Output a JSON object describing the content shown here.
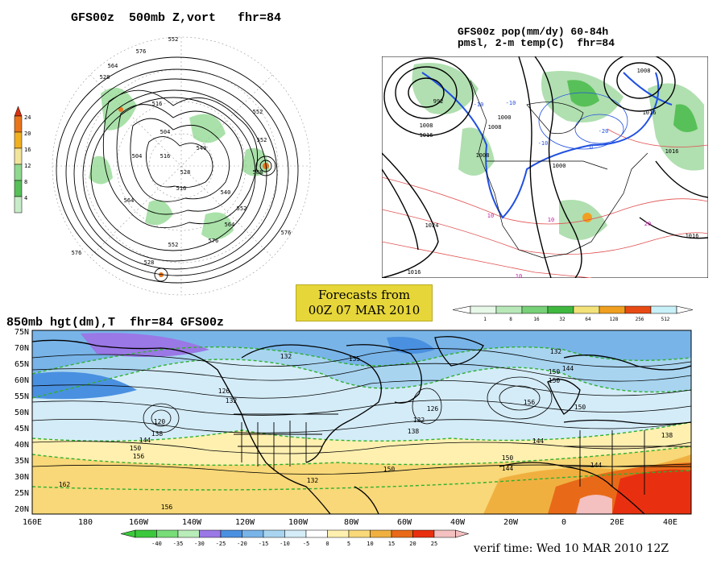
{
  "polar_panel": {
    "title": "GFS00z  500mb Z,vort   fhr=84",
    "colorbar_ticks": [
      "24",
      "20",
      "16",
      "12",
      "8",
      "4"
    ],
    "colorbar_colors": [
      "#e8741c",
      "#f0b020",
      "#f2e49a",
      "#90d890",
      "#58c058",
      "#c8ecc8"
    ],
    "contour_labels": [
      "552",
      "576",
      "564",
      "528",
      "516",
      "504",
      "516",
      "528",
      "540",
      "552",
      "564",
      "576",
      "528",
      "552",
      "576",
      "564",
      "540",
      "516",
      "504",
      "552",
      "552",
      "588",
      "576"
    ]
  },
  "na_panel": {
    "title_line1": "GFS00z pop(mm/dy) 60-84h",
    "title_line2": "pmsl, 2-m temp(C)  fhr=84",
    "isobar_labels": [
      "992",
      "1008",
      "1016",
      "1024",
      "1016",
      "1008",
      "1000",
      "1008",
      "1016",
      "1016",
      "1000",
      "1008",
      "1016"
    ],
    "temp_labels": [
      "-10",
      "-10",
      "-20",
      "-10",
      "0",
      "10",
      "10",
      "10",
      "20"
    ]
  },
  "banner": {
    "line1": "Forecasts from",
    "line2": "00Z 07 MAR 2010"
  },
  "precip_colorbar": {
    "ticks": [
      "1",
      "8",
      "16",
      "32",
      "64",
      "128",
      "256",
      "512"
    ],
    "colors": [
      "#e8f8e8",
      "#b8e8b8",
      "#78d078",
      "#40b840",
      "#f2e27a",
      "#f0a020",
      "#e84a14",
      "#c8f0f8"
    ]
  },
  "main_map": {
    "title": "850mb hgt(dm),T  fhr=84 GFS00z",
    "lat_labels": [
      "75N",
      "70N",
      "65N",
      "60N",
      "55N",
      "50N",
      "45N",
      "40N",
      "35N",
      "30N",
      "25N",
      "20N"
    ],
    "lon_labels": [
      "160E",
      "180",
      "160W",
      "140W",
      "120W",
      "100W",
      "80W",
      "60W",
      "40W",
      "20W",
      "0",
      "20E",
      "40E"
    ],
    "height_labels": [
      "132",
      "135",
      "132",
      "126",
      "132",
      "120",
      "138",
      "144",
      "150",
      "156",
      "126",
      "132",
      "138",
      "150",
      "144",
      "150",
      "156",
      "150",
      "144",
      "150",
      "144",
      "132",
      "150",
      "162",
      "156",
      "138",
      "144"
    ],
    "temp_colorbar_ticks": [
      "-40",
      "-35",
      "-30",
      "-25",
      "-20",
      "-15",
      "-10",
      "-5",
      "0",
      "5",
      "10",
      "15",
      "20",
      "25"
    ],
    "temp_colorbar_colors": [
      "#3cc83c",
      "#78dc78",
      "#b8ecb8",
      "#9a78e6",
      "#4a90e0",
      "#78b4e8",
      "#a8d4f0",
      "#d4ecf8",
      "#ffffff",
      "#fff0b0",
      "#f8d878",
      "#f0b040",
      "#e86a18",
      "#e83010",
      "#f4c0c0"
    ],
    "verif_time": "verif time: Wed 10 MAR 2010 12Z"
  }
}
